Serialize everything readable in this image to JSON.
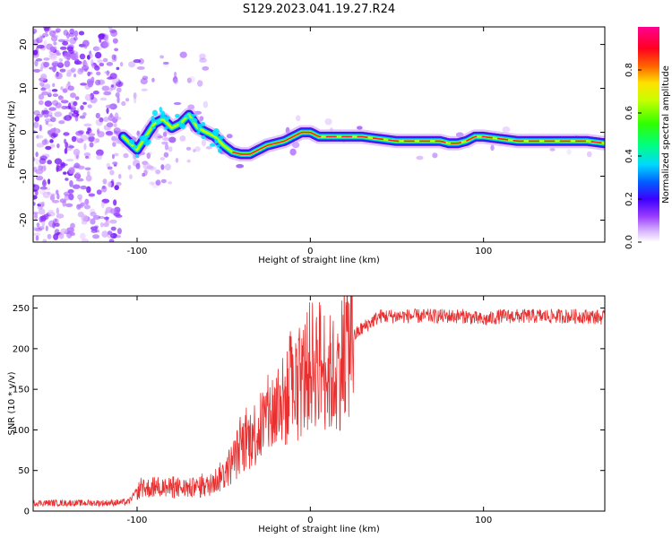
{
  "title": "S129.2023.041.19.27.R24",
  "chart_data": [
    {
      "type": "heatmap",
      "xlabel": "Height of straight line (km)",
      "ylabel": "Frequency (Hz)",
      "xlim": [
        -160,
        170
      ],
      "ylim": [
        -25,
        24
      ],
      "x_ticks": [
        -100,
        0,
        100
      ],
      "y_ticks": [
        -20,
        -10,
        0,
        10,
        20
      ],
      "colorbar": {
        "label": "Normalized spectral amplitude",
        "range": [
          0,
          1
        ],
        "ticks": [
          "0.0",
          "0.2",
          "0.4",
          "0.6",
          "0.8"
        ],
        "colormap": "white-purple-blue-cyan-green-yellow-red-magenta"
      },
      "ridge": {
        "x": [
          -108,
          -100,
          -95,
          -90,
          -85,
          -80,
          -75,
          -70,
          -65,
          -60,
          -55,
          -50,
          -45,
          -40,
          -35,
          -30,
          -25,
          -20,
          -15,
          -10,
          -5,
          0,
          5,
          10,
          15,
          20,
          30,
          40,
          50,
          60,
          70,
          75,
          80,
          85,
          90,
          95,
          100,
          110,
          120,
          140,
          160,
          170
        ],
        "y": [
          -1,
          -4,
          -1,
          2,
          3,
          1,
          2,
          4,
          1,
          0,
          -1,
          -3,
          -4.5,
          -5,
          -5,
          -4,
          -3,
          -2.5,
          -2,
          -1,
          0,
          0,
          -1,
          -1,
          -1,
          -1,
          -1,
          -1.5,
          -2,
          -2,
          -2,
          -2,
          -2.5,
          -2.5,
          -2,
          -1,
          -1,
          -1.5,
          -2,
          -2,
          -2,
          -2.5
        ]
      }
    },
    {
      "type": "line",
      "xlabel": "Height of straight line (km)",
      "ylabel": "SNR (10 * v/v)",
      "xlim": [
        -160,
        170
      ],
      "ylim": [
        0,
        265
      ],
      "x_ticks": [
        -100,
        0,
        100
      ],
      "y_ticks": [
        0,
        50,
        100,
        150,
        200,
        250
      ],
      "color": "#e83030",
      "trend": {
        "x": [
          -160,
          -140,
          -120,
          -105,
          -100,
          -90,
          -80,
          -70,
          -60,
          -50,
          -45,
          -40,
          -35,
          -30,
          -25,
          -20,
          -15,
          -10,
          -5,
          0,
          5,
          10,
          15,
          20,
          25,
          30,
          40,
          50,
          60,
          80,
          90,
          100,
          110,
          120,
          140,
          160,
          170
        ],
        "y": [
          10,
          10,
          10,
          11,
          25,
          30,
          28,
          28,
          30,
          45,
          60,
          80,
          90,
          100,
          115,
          125,
          135,
          145,
          160,
          180,
          185,
          170,
          165,
          200,
          215,
          225,
          240,
          240,
          240,
          240,
          240,
          235,
          240,
          240,
          240,
          240,
          238
        ]
      }
    }
  ]
}
